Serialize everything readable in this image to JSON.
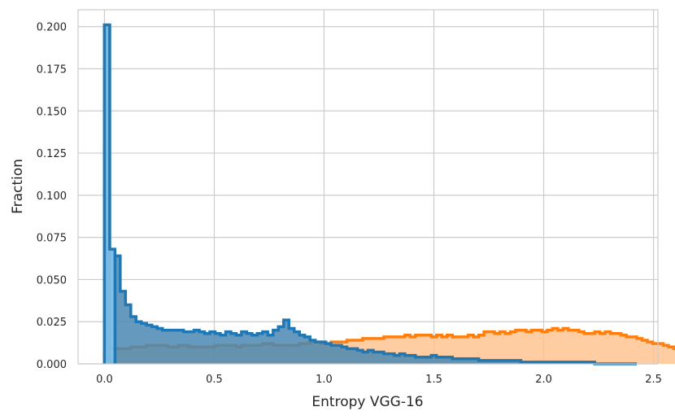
{
  "chart_data": {
    "type": "area",
    "title": "",
    "xlabel": "Entropy VGG-16",
    "ylabel": "Fraction",
    "xlim": [
      -0.12,
      2.52
    ],
    "ylim": [
      0,
      0.21
    ],
    "xticks": [
      0.0,
      0.5,
      1.0,
      1.5,
      2.0,
      2.5
    ],
    "xtick_labels": [
      "0.0",
      "0.5",
      "1.0",
      "1.5",
      "2.0",
      "2.5"
    ],
    "yticks": [
      0.0,
      0.025,
      0.05,
      0.075,
      0.1,
      0.125,
      0.15,
      0.175,
      0.2
    ],
    "ytick_labels": [
      "0.000",
      "0.025",
      "0.050",
      "0.075",
      "0.100",
      "0.125",
      "0.150",
      "0.175",
      "0.200"
    ],
    "grid": true,
    "legend": "none",
    "bin_width": 0.024,
    "series": [
      {
        "color": "#ff7f0e",
        "fill": "#ffc08a",
        "bin_start": 0.0,
        "values": [
          0.006,
          0.009,
          0.009,
          0.009,
          0.009,
          0.01,
          0.01,
          0.01,
          0.011,
          0.011,
          0.011,
          0.011,
          0.01,
          0.01,
          0.011,
          0.011,
          0.01,
          0.01,
          0.01,
          0.01,
          0.01,
          0.011,
          0.011,
          0.011,
          0.011,
          0.01,
          0.011,
          0.011,
          0.011,
          0.011,
          0.012,
          0.012,
          0.011,
          0.011,
          0.011,
          0.011,
          0.011,
          0.012,
          0.012,
          0.013,
          0.013,
          0.012,
          0.012,
          0.013,
          0.013,
          0.013,
          0.014,
          0.014,
          0.014,
          0.015,
          0.015,
          0.015,
          0.015,
          0.016,
          0.016,
          0.016,
          0.016,
          0.017,
          0.016,
          0.017,
          0.017,
          0.017,
          0.016,
          0.017,
          0.016,
          0.017,
          0.016,
          0.016,
          0.016,
          0.017,
          0.016,
          0.017,
          0.019,
          0.019,
          0.018,
          0.019,
          0.018,
          0.019,
          0.02,
          0.02,
          0.019,
          0.02,
          0.02,
          0.019,
          0.02,
          0.021,
          0.02,
          0.021,
          0.02,
          0.02,
          0.019,
          0.018,
          0.018,
          0.019,
          0.018,
          0.019,
          0.018,
          0.018,
          0.017,
          0.016,
          0.016,
          0.015,
          0.014,
          0.013,
          0.012,
          0.012,
          0.011,
          0.01,
          0.009,
          0.008,
          0.006,
          0.005,
          0.004,
          0.003,
          0.003,
          0.002,
          0.001,
          0.001,
          0.001,
          0.001,
          0.001,
          0.0,
          0.0,
          0.0,
          0.0,
          0.0,
          0.0,
          0.0,
          0.0,
          0.0
        ]
      },
      {
        "color": "#1f77b4",
        "fill": "#4a87b2",
        "bin_start": 0.0,
        "values": [
          0.201,
          0.001,
          0.064,
          0.043,
          0.035,
          0.028,
          0.025,
          0.024,
          0.023,
          0.022,
          0.021,
          0.02,
          0.02,
          0.02,
          0.02,
          0.019,
          0.019,
          0.02,
          0.019,
          0.018,
          0.019,
          0.018,
          0.017,
          0.019,
          0.018,
          0.017,
          0.019,
          0.018,
          0.017,
          0.018,
          0.019,
          0.017,
          0.02,
          0.022,
          0.026,
          0.021,
          0.019,
          0.017,
          0.016,
          0.014,
          0.013,
          0.013,
          0.012,
          0.011,
          0.011,
          0.01,
          0.009,
          0.009,
          0.008,
          0.007,
          0.008,
          0.007,
          0.007,
          0.006,
          0.006,
          0.005,
          0.006,
          0.005,
          0.005,
          0.004,
          0.004,
          0.004,
          0.005,
          0.004,
          0.004,
          0.004,
          0.003,
          0.003,
          0.003,
          0.003,
          0.003,
          0.002,
          0.002,
          0.002,
          0.002,
          0.002,
          0.002,
          0.002,
          0.002,
          0.001,
          0.001,
          0.001,
          0.001,
          0.001,
          0.001,
          0.001,
          0.001,
          0.001,
          0.001,
          0.001,
          0.001,
          0.001,
          0.001,
          0.0,
          0.0,
          0.0,
          0.0,
          0.0,
          0.0,
          0.0,
          0.0
        ]
      },
      {
        "color": "#1f77b4",
        "fill": "#7bbde8",
        "bin_start": 0.0,
        "values": [
          0.201,
          0.068
        ]
      }
    ]
  }
}
